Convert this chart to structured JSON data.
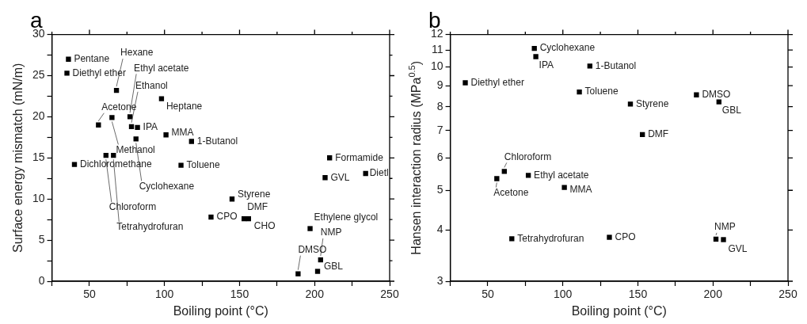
{
  "chart_data": [
    {
      "type": "scatter",
      "title": "a",
      "xlabel": "Boiling point (°C)",
      "ylabel": "Surface energy mismatch (mN/m)",
      "marker": "square",
      "legend": false,
      "xlim": [
        25,
        250
      ],
      "ylim": [
        0,
        30
      ],
      "xticks": [
        {
          "value": 25,
          "label": null
        },
        50,
        {
          "value": 75,
          "label": null
        },
        100,
        {
          "value": 125,
          "label": null
        },
        150,
        {
          "value": 175,
          "label": null
        },
        200,
        {
          "value": 225,
          "label": null
        },
        250
      ],
      "yticks": [
        0,
        {
          "value": 2.5,
          "label": null
        },
        5,
        {
          "value": 7.5,
          "label": null
        },
        10,
        {
          "value": 12.5,
          "label": null
        },
        15,
        {
          "value": 17.5,
          "label": null
        },
        20,
        {
          "value": 22.5,
          "label": null
        },
        25,
        {
          "value": 27.5,
          "label": null
        },
        30
      ],
      "series": [
        {
          "color": "#000000",
          "x": [
            36,
            35,
            68,
            77,
            78,
            56,
            65,
            82,
            81,
            98,
            101,
            118,
            111,
            40,
            61,
            66,
            145,
            131,
            153,
            156,
            197,
            204,
            189,
            202,
            207,
            210,
            234
          ],
          "values": [
            27.0,
            25.3,
            23.2,
            20.0,
            18.8,
            19.0,
            19.9,
            18.7,
            17.3,
            22.2,
            17.8,
            17.0,
            14.1,
            14.2,
            15.3,
            15.3,
            10.0,
            7.8,
            7.6,
            7.6,
            6.4,
            2.6,
            0.9,
            1.2,
            12.6,
            15.0,
            13.1
          ]
        }
      ],
      "annotations": [
        {
          "text": "Pentane",
          "x": 36,
          "y": 27.0
        },
        {
          "text": "Diethyl ether",
          "x": 35,
          "y": 25.3
        },
        {
          "text": "Hexane",
          "x": 68,
          "y": 23.2
        },
        {
          "text": "Ethyl acetate",
          "x": 77,
          "y": 20.0
        },
        {
          "text": "Ethanol",
          "x": 78,
          "y": 18.8
        },
        {
          "text": "Acetone",
          "x": 56,
          "y": 19.0
        },
        {
          "text": "Methanol",
          "x": 65,
          "y": 19.9
        },
        {
          "text": "IPA",
          "x": 82,
          "y": 18.7
        },
        {
          "text": "Cyclohexane",
          "x": 81,
          "y": 17.3
        },
        {
          "text": "Heptane",
          "x": 98,
          "y": 22.2
        },
        {
          "text": "MMA",
          "x": 101,
          "y": 17.8
        },
        {
          "text": "1-Butanol",
          "x": 118,
          "y": 17.0
        },
        {
          "text": "Toluene",
          "x": 111,
          "y": 14.1
        },
        {
          "text": "Dichloromethane",
          "x": 40,
          "y": 14.2
        },
        {
          "text": "Chloroform",
          "x": 61,
          "y": 15.3
        },
        {
          "text": "Tetrahydrofuran",
          "x": 66,
          "y": 15.3
        },
        {
          "text": "Styrene",
          "x": 145,
          "y": 10.0
        },
        {
          "text": "CPO",
          "x": 131,
          "y": 7.8
        },
        {
          "text": "DMF",
          "x": 153,
          "y": 7.6
        },
        {
          "text": "CHO",
          "x": 156,
          "y": 7.6
        },
        {
          "text": "Ethylene glycol",
          "x": 197,
          "y": 6.4
        },
        {
          "text": "NMP",
          "x": 204,
          "y": 2.6
        },
        {
          "text": "DMSO",
          "x": 189,
          "y": 0.9
        },
        {
          "text": "GBL",
          "x": 202,
          "y": 1.2
        },
        {
          "text": "GVL",
          "x": 207,
          "y": 12.6
        },
        {
          "text": "Formamide",
          "x": 210,
          "y": 15.0
        },
        {
          "text": "Dietl",
          "x": 234,
          "y": 13.1
        }
      ]
    },
    {
      "type": "scatter",
      "title": "b",
      "xlabel": "Boiling point (°C)",
      "ylabel": "Hansen interaction radius (MPa$^{0.5}$)",
      "marker": "square",
      "legend": false,
      "log": "y",
      "xlim": [
        25,
        250
      ],
      "ylim": [
        3,
        12
      ],
      "xticks": [
        {
          "value": 25,
          "label": null
        },
        50,
        {
          "value": 75,
          "label": null
        },
        100,
        {
          "value": 125,
          "label": null
        },
        150,
        {
          "value": 175,
          "label": null
        },
        200,
        {
          "value": 225,
          "label": null
        },
        250
      ],
      "yticks": [
        3,
        4,
        5,
        6,
        7,
        8,
        9,
        10,
        11,
        12
      ],
      "series": [
        {
          "color": "#000000",
          "x": [
            81,
            82,
            118,
            35,
            111,
            145,
            189,
            204,
            153,
            61,
            56,
            77,
            101,
            66,
            131,
            202,
            207
          ],
          "values": [
            11.1,
            10.6,
            10.05,
            9.15,
            8.69,
            8.12,
            8.55,
            8.22,
            6.84,
            5.56,
            5.34,
            5.44,
            5.08,
            3.81,
            3.84,
            3.8,
            3.79
          ]
        }
      ],
      "annotations": [
        {
          "text": "Cyclohexane",
          "x": 81,
          "y": 11.1
        },
        {
          "text": "IPA",
          "x": 82,
          "y": 10.6
        },
        {
          "text": "1-Butanol",
          "x": 118,
          "y": 10.05
        },
        {
          "text": "Diethyl ether",
          "x": 35,
          "y": 9.15
        },
        {
          "text": "Toluene",
          "x": 111,
          "y": 8.69
        },
        {
          "text": "Styrene",
          "x": 145,
          "y": 8.12
        },
        {
          "text": "DMSO",
          "x": 189,
          "y": 8.55
        },
        {
          "text": "GBL",
          "x": 204,
          "y": 8.22
        },
        {
          "text": "DMF",
          "x": 153,
          "y": 6.84
        },
        {
          "text": "Chloroform",
          "x": 61,
          "y": 5.56
        },
        {
          "text": "Acetone",
          "x": 56,
          "y": 5.34
        },
        {
          "text": "Ethyl acetate",
          "x": 77,
          "y": 5.44
        },
        {
          "text": "MMA",
          "x": 101,
          "y": 5.08
        },
        {
          "text": "Tetrahydrofuran",
          "x": 66,
          "y": 3.81
        },
        {
          "text": "CPO",
          "x": 131,
          "y": 3.84
        },
        {
          "text": "NMP",
          "x": 202,
          "y": 3.8
        },
        {
          "text": "GVL",
          "x": 207,
          "y": 3.79
        }
      ]
    }
  ]
}
